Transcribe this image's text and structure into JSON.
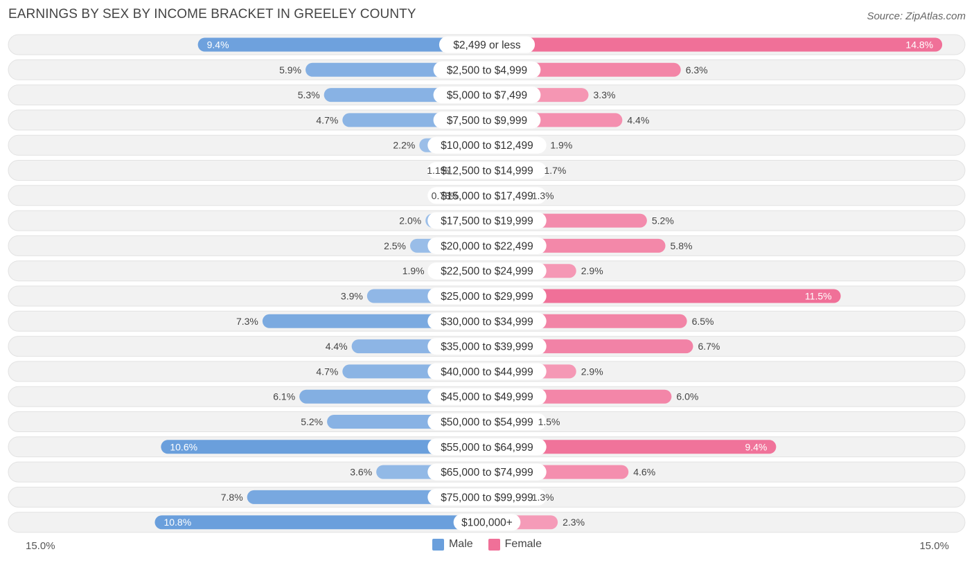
{
  "header": {
    "title": "EARNINGS BY SEX BY INCOME BRACKET IN GREELEY COUNTY",
    "source": "Source: ZipAtlas.com"
  },
  "colors": {
    "male": "#6a9fdc",
    "male_light": "#a9c7ec",
    "female": "#f07098",
    "female_light": "#f7a8c1",
    "row_bg": "#f2f2f2"
  },
  "legend": {
    "male_label": "Male",
    "female_label": "Female"
  },
  "axis": {
    "left_label": "15.0%",
    "right_label": "15.0%"
  },
  "chart_data": {
    "type": "bar",
    "orientation": "horizontal-diverging",
    "title": "EARNINGS BY SEX BY INCOME BRACKET IN GREELEY COUNTY",
    "axis_max": 15.0,
    "categories": [
      "$2,499 or less",
      "$2,500 to $4,999",
      "$5,000 to $7,499",
      "$7,500 to $9,999",
      "$10,000 to $12,499",
      "$12,500 to $14,999",
      "$15,000 to $17,499",
      "$17,500 to $19,999",
      "$20,000 to $22,499",
      "$22,500 to $24,999",
      "$25,000 to $29,999",
      "$30,000 to $34,999",
      "$35,000 to $39,999",
      "$40,000 to $44,999",
      "$45,000 to $49,999",
      "$50,000 to $54,999",
      "$55,000 to $64,999",
      "$65,000 to $74,999",
      "$75,000 to $99,999",
      "$100,000+"
    ],
    "series": [
      {
        "name": "Male",
        "values": [
          9.4,
          5.9,
          5.3,
          4.7,
          2.2,
          1.1,
          0.78,
          2.0,
          2.5,
          1.9,
          3.9,
          7.3,
          4.4,
          4.7,
          6.1,
          5.2,
          10.6,
          3.6,
          7.8,
          10.8
        ],
        "labels": [
          "9.4%",
          "5.9%",
          "5.3%",
          "4.7%",
          "2.2%",
          "1.1%",
          "0.78%",
          "2.0%",
          "2.5%",
          "1.9%",
          "3.9%",
          "7.3%",
          "4.4%",
          "4.7%",
          "6.1%",
          "5.2%",
          "10.6%",
          "3.6%",
          "7.8%",
          "10.8%"
        ]
      },
      {
        "name": "Female",
        "values": [
          14.8,
          6.3,
          3.3,
          4.4,
          1.9,
          1.7,
          1.3,
          5.2,
          5.8,
          2.9,
          11.5,
          6.5,
          6.7,
          2.9,
          6.0,
          1.5,
          9.4,
          4.6,
          1.3,
          2.3
        ],
        "labels": [
          "14.8%",
          "6.3%",
          "3.3%",
          "4.4%",
          "1.9%",
          "1.7%",
          "1.3%",
          "5.2%",
          "5.8%",
          "2.9%",
          "11.5%",
          "6.5%",
          "6.7%",
          "2.9%",
          "6.0%",
          "1.5%",
          "9.4%",
          "4.6%",
          "1.3%",
          "2.3%"
        ]
      }
    ],
    "xlabel_left": "15.0%",
    "xlabel_right": "15.0%",
    "legend": [
      "Male",
      "Female"
    ],
    "legend_position": "bottom-center"
  }
}
